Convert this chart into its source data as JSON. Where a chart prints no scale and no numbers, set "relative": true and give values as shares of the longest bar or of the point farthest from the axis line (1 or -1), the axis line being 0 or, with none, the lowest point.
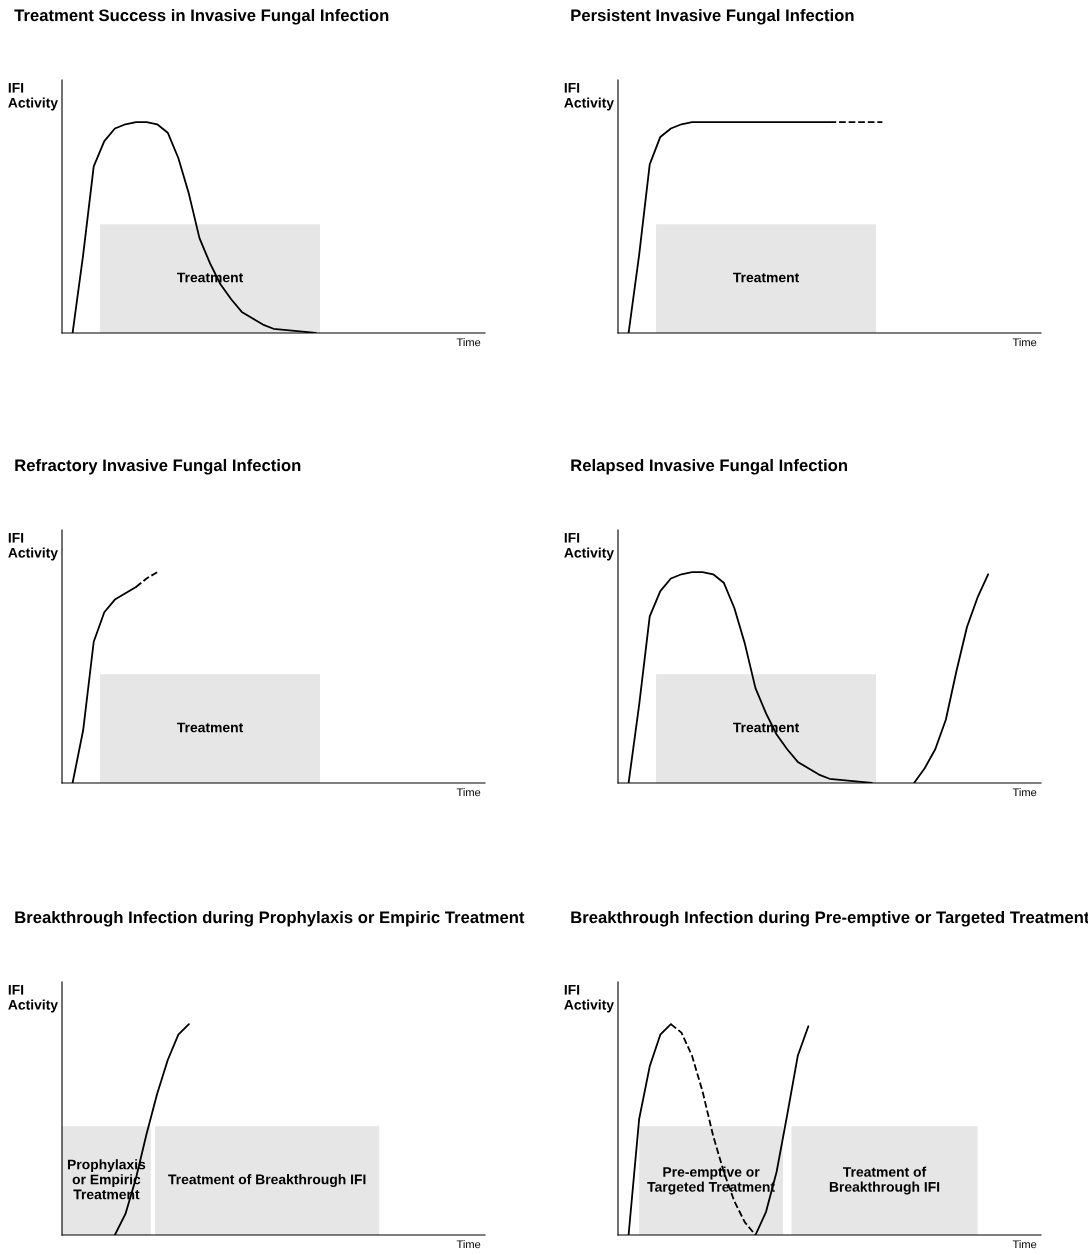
{
  "chart_data": [
    {
      "type": "line",
      "relative": true,
      "title": "Treatment Success in Invasive Fungal Infection",
      "ylabel": "IFI\nActivity",
      "xlabel": "Time",
      "tick_labels": false,
      "categories": [
        null,
        null,
        null,
        null,
        null,
        null,
        null,
        null,
        null,
        null,
        null,
        null,
        null,
        null,
        null,
        null,
        null,
        null,
        null,
        null,
        null,
        null,
        null,
        null,
        null,
        null,
        null,
        null,
        null,
        null,
        null,
        null,
        null,
        null,
        null,
        null,
        null,
        null,
        null,
        null,
        null
      ],
      "annotations": [
        "Treatment"
      ],
      "series": [
        {
          "color": "#000000",
          "line_style": "solid",
          "values": [
            null,
            0,
            0.37,
            0.79,
            0.91,
            0.97,
            0.99,
            1,
            1,
            0.99,
            0.95,
            0.83,
            0.66,
            0.45,
            0.33,
            0.23,
            0.16,
            0.1,
            0.07,
            0.04,
            0.02,
            0.015,
            0.01,
            0.005,
            0,
            null,
            null,
            null,
            null,
            null,
            null,
            null,
            null,
            null,
            null,
            null,
            null,
            null,
            null,
            null,
            null
          ]
        }
      ]
    },
    {
      "type": "line",
      "relative": true,
      "title": "Persistent Invasive Fungal Infection",
      "ylabel": "IFI\nActivity",
      "xlabel": "Time",
      "tick_labels": false,
      "categories": [
        null,
        null,
        null,
        null,
        null,
        null,
        null,
        null,
        null,
        null,
        null,
        null,
        null,
        null,
        null,
        null,
        null,
        null,
        null,
        null,
        null,
        null,
        null,
        null,
        null,
        null,
        null,
        null,
        null,
        null,
        null,
        null,
        null,
        null,
        null,
        null,
        null,
        null,
        null,
        null,
        null
      ],
      "annotations": [
        "Treatment"
      ],
      "series": [
        {
          "color": "#000000",
          "line_style": "solid",
          "values": [
            null,
            0,
            0.37,
            0.8,
            0.93,
            0.97,
            0.99,
            1,
            1,
            1,
            1,
            1,
            1,
            1,
            1,
            1,
            1,
            1,
            1,
            1,
            1,
            null,
            null,
            null,
            null,
            null,
            null,
            null,
            null,
            null,
            null,
            null,
            null,
            null,
            null,
            null,
            null,
            null,
            null,
            null,
            null
          ]
        },
        {
          "color": "#000000",
          "line_style": "dashed",
          "values": [
            null,
            null,
            null,
            null,
            null,
            null,
            null,
            null,
            null,
            null,
            null,
            null,
            null,
            null,
            null,
            null,
            null,
            null,
            null,
            null,
            1,
            1,
            1,
            1,
            1,
            1,
            null,
            null,
            null,
            null,
            null,
            null,
            null,
            null,
            null,
            null,
            null,
            null,
            null,
            null,
            null
          ]
        }
      ]
    },
    {
      "type": "line",
      "relative": true,
      "title": "Refractory Invasive Fungal Infection",
      "ylabel": "IFI\nActivity",
      "xlabel": "Time",
      "tick_labels": false,
      "categories": [
        null,
        null,
        null,
        null,
        null,
        null,
        null,
        null,
        null,
        null,
        null,
        null,
        null,
        null,
        null,
        null,
        null,
        null,
        null,
        null,
        null,
        null,
        null,
        null,
        null,
        null,
        null,
        null,
        null,
        null,
        null,
        null,
        null,
        null,
        null,
        null,
        null,
        null,
        null,
        null,
        null
      ],
      "annotations": [
        "Treatment"
      ],
      "series": [
        {
          "color": "#000000",
          "line_style": "solid",
          "values": [
            null,
            0,
            0.25,
            0.67,
            0.81,
            0.87,
            0.9,
            0.93,
            null,
            null,
            null,
            null,
            null,
            null,
            null,
            null,
            null,
            null,
            null,
            null,
            null,
            null,
            null,
            null,
            null,
            null,
            null,
            null,
            null,
            null,
            null,
            null,
            null,
            null,
            null,
            null,
            null,
            null,
            null,
            null,
            null
          ]
        },
        {
          "color": "#000000",
          "line_style": "dashed",
          "values": [
            null,
            null,
            null,
            null,
            null,
            null,
            null,
            0.93,
            0.97,
            1,
            null,
            null,
            null,
            null,
            null,
            null,
            null,
            null,
            null,
            null,
            null,
            null,
            null,
            null,
            null,
            null,
            null,
            null,
            null,
            null,
            null,
            null,
            null,
            null,
            null,
            null,
            null,
            null,
            null,
            null,
            null
          ]
        }
      ]
    },
    {
      "type": "line",
      "relative": true,
      "title": "Relapsed Invasive Fungal Infection",
      "ylabel": "IFI\nActivity",
      "xlabel": "Time",
      "tick_labels": false,
      "categories": [
        null,
        null,
        null,
        null,
        null,
        null,
        null,
        null,
        null,
        null,
        null,
        null,
        null,
        null,
        null,
        null,
        null,
        null,
        null,
        null,
        null,
        null,
        null,
        null,
        null,
        null,
        null,
        null,
        null,
        null,
        null,
        null,
        null,
        null,
        null,
        null,
        null,
        null,
        null,
        null,
        null
      ],
      "annotations": [
        "Treatment"
      ],
      "series": [
        {
          "color": "#000000",
          "line_style": "solid",
          "values": [
            null,
            0,
            0.37,
            0.79,
            0.91,
            0.97,
            0.99,
            1,
            1,
            0.99,
            0.95,
            0.83,
            0.66,
            0.45,
            0.33,
            0.23,
            0.16,
            0.1,
            0.07,
            0.04,
            0.02,
            0.015,
            0.01,
            0.005,
            0,
            null,
            null,
            null,
            null,
            null,
            null,
            null,
            null,
            null,
            null,
            null,
            null,
            null,
            null,
            null,
            null
          ]
        },
        {
          "color": "#000000",
          "line_style": "solid",
          "values": [
            null,
            null,
            null,
            null,
            null,
            null,
            null,
            null,
            null,
            null,
            null,
            null,
            null,
            null,
            null,
            null,
            null,
            null,
            null,
            null,
            null,
            null,
            null,
            null,
            null,
            null,
            null,
            null,
            0,
            0.07,
            0.16,
            0.3,
            0.53,
            0.74,
            0.88,
            0.99,
            null,
            null,
            null,
            null,
            null
          ]
        }
      ]
    },
    {
      "type": "line",
      "relative": true,
      "title": "Breakthrough Infection during Prophylaxis or Empiric Treatment",
      "ylabel": "IFI\nActivity",
      "xlabel": "Time",
      "tick_labels": false,
      "categories": [
        null,
        null,
        null,
        null,
        null,
        null,
        null,
        null,
        null,
        null,
        null,
        null,
        null,
        null,
        null,
        null,
        null,
        null,
        null,
        null,
        null,
        null,
        null,
        null,
        null,
        null,
        null,
        null,
        null,
        null,
        null,
        null,
        null,
        null,
        null,
        null,
        null,
        null,
        null,
        null,
        null
      ],
      "annotations": [
        "Prophylaxis\nor Empiric\nTreatment",
        "Treatment of Breakthrough IFI"
      ],
      "series": [
        {
          "color": "#000000",
          "line_style": "solid",
          "values": [
            null,
            null,
            null,
            null,
            null,
            0,
            0.1,
            0.27,
            0.48,
            0.67,
            0.83,
            0.95,
            1,
            null,
            null,
            null,
            null,
            null,
            null,
            null,
            null,
            null,
            null,
            null,
            null,
            null,
            null,
            null,
            null,
            null,
            null,
            null,
            null,
            null,
            null,
            null,
            null,
            null,
            null,
            null,
            null
          ]
        }
      ]
    },
    {
      "type": "line",
      "relative": true,
      "title": "Breakthrough Infection during Pre-emptive or Targeted Treatment",
      "ylabel": "IFI\nActivity",
      "xlabel": "Time",
      "tick_labels": false,
      "categories": [
        null,
        null,
        null,
        null,
        null,
        null,
        null,
        null,
        null,
        null,
        null,
        null,
        null,
        null,
        null,
        null,
        null,
        null,
        null,
        null,
        null,
        null,
        null,
        null,
        null,
        null,
        null,
        null,
        null,
        null,
        null,
        null,
        null,
        null,
        null,
        null,
        null,
        null,
        null,
        null,
        null
      ],
      "annotations": [
        "Pre-emptive or\nTargeted Treatment",
        "Treatment of\nBreakthrough IFI"
      ],
      "series": [
        {
          "color": "#000000",
          "line_style": "solid",
          "values": [
            null,
            0,
            0.55,
            0.8,
            0.95,
            1,
            null,
            null,
            null,
            null,
            null,
            null,
            null,
            null,
            null,
            null,
            null,
            null,
            null,
            null,
            null,
            null,
            null,
            null,
            null,
            null,
            null,
            null,
            null,
            null,
            null,
            null,
            null,
            null,
            null,
            null,
            null,
            null,
            null,
            null,
            null
          ]
        },
        {
          "color": "#000000",
          "line_style": "dashed",
          "values": [
            null,
            null,
            null,
            null,
            null,
            1,
            0.96,
            0.85,
            0.68,
            0.47,
            0.3,
            0.16,
            0.06,
            0,
            null,
            null,
            null,
            null,
            null,
            null,
            null,
            null,
            null,
            null,
            null,
            null,
            null,
            null,
            null,
            null,
            null,
            null,
            null,
            null,
            null,
            null,
            null,
            null,
            null,
            null,
            null
          ]
        },
        {
          "color": "#000000",
          "line_style": "solid",
          "values": [
            null,
            null,
            null,
            null,
            null,
            null,
            null,
            null,
            null,
            null,
            null,
            null,
            null,
            0,
            0.11,
            0.3,
            0.57,
            0.85,
            0.99,
            null,
            null,
            null,
            null,
            null,
            null,
            null,
            null,
            null,
            null,
            null,
            null,
            null,
            null,
            null,
            null,
            null,
            null,
            null,
            null,
            null,
            null
          ]
        }
      ]
    }
  ]
}
